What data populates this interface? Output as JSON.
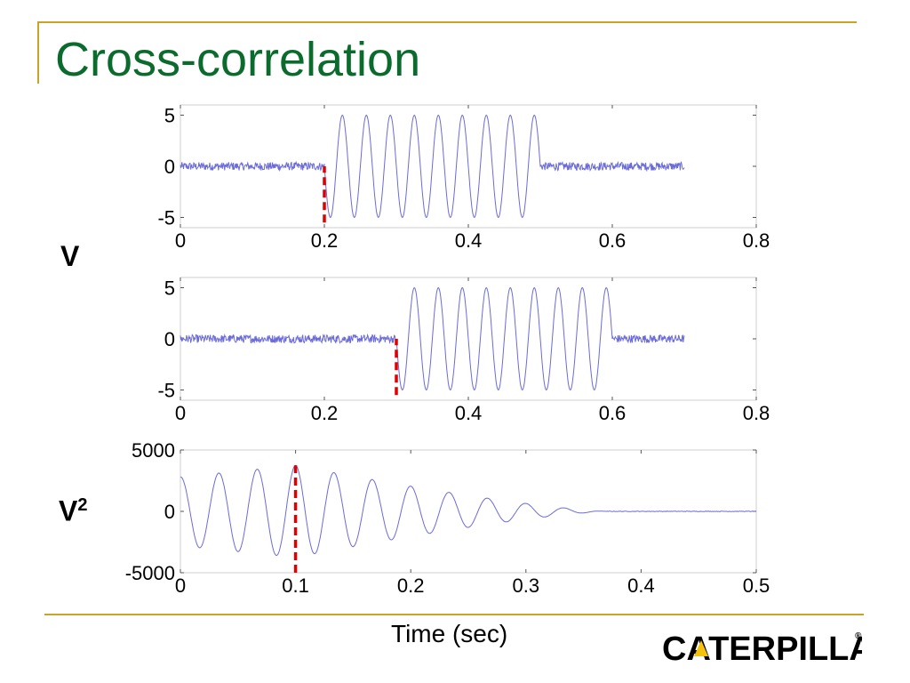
{
  "slide": {
    "title": "Cross-correlation",
    "label_v": "V",
    "label_v2_base": "V",
    "label_v2_sup": "2",
    "logo_text": "CATERPILLAR",
    "logo_mark": "®"
  },
  "colors": {
    "title": "#0b6b2d",
    "rule": "#c9a227",
    "signal": "#6b6bd9",
    "marker": "#e00000"
  },
  "chart_data": [
    {
      "type": "line",
      "title": "",
      "xlabel": "",
      "ylabel": "",
      "xlim": [
        0,
        0.8
      ],
      "ylim": [
        -6,
        6
      ],
      "xticks": [
        0,
        0.2,
        0.4,
        0.6,
        0.8
      ],
      "yticks": [
        -5,
        0,
        5
      ],
      "xtick_labels": [
        "0",
        "0.2",
        "0.4",
        "0.6",
        "0.8"
      ],
      "ytick_labels": [
        "-5",
        "0",
        "5"
      ],
      "series": [
        {
          "segments": [
            {
              "kind": "noise",
              "x": [
                0,
                0.2
              ],
              "amplitude": 0.4
            },
            {
              "kind": "sine",
              "x": [
                0.2,
                0.5
              ],
              "amplitude": 5,
              "frequency_hz": 30
            },
            {
              "kind": "noise",
              "x": [
                0.5,
                0.7
              ],
              "amplitude": 0.4
            }
          ]
        }
      ],
      "marker": {
        "x": 0.2,
        "y": [
          -5.5,
          0
        ],
        "style": "dashed",
        "color": "#e00000"
      },
      "grid": false
    },
    {
      "type": "line",
      "title": "",
      "xlabel": "",
      "ylabel": "",
      "xlim": [
        0,
        0.8
      ],
      "ylim": [
        -6,
        6
      ],
      "xticks": [
        0,
        0.2,
        0.4,
        0.6,
        0.8
      ],
      "yticks": [
        -5,
        0,
        5
      ],
      "xtick_labels": [
        "0",
        "0.2",
        "0.4",
        "0.6",
        "0.8"
      ],
      "ytick_labels": [
        "-5",
        "0",
        "5"
      ],
      "series": [
        {
          "segments": [
            {
              "kind": "noise",
              "x": [
                0,
                0.3
              ],
              "amplitude": 0.4
            },
            {
              "kind": "sine",
              "x": [
                0.3,
                0.6
              ],
              "amplitude": 5,
              "frequency_hz": 30
            },
            {
              "kind": "noise",
              "x": [
                0.6,
                0.7
              ],
              "amplitude": 0.4
            }
          ]
        }
      ],
      "marker": {
        "x": 0.3,
        "y": [
          -5.5,
          0
        ],
        "style": "dashed",
        "color": "#e00000"
      },
      "grid": false
    },
    {
      "type": "line",
      "title": "",
      "xlabel": "Time (sec)",
      "ylabel": "",
      "xlim": [
        0,
        0.5
      ],
      "ylim": [
        -5000,
        5000
      ],
      "xticks": [
        0,
        0.1,
        0.2,
        0.3,
        0.4,
        0.5
      ],
      "yticks": [
        -5000,
        0,
        5000
      ],
      "xtick_labels": [
        "0",
        "0.1",
        "0.2",
        "0.3",
        "0.4",
        "0.5"
      ],
      "ytick_labels": [
        "-5000",
        "0",
        "5000"
      ],
      "series": [
        {
          "segments": [
            {
              "kind": "cross_correlation",
              "x": [
                0,
                0.5
              ],
              "peak": 3750,
              "peak_x": 0.1,
              "frequency_hz": 30,
              "decay_end_x": 0.37
            }
          ]
        }
      ],
      "marker": {
        "x": 0.1,
        "y": [
          -5000,
          3750
        ],
        "style": "dashed",
        "color": "#e00000"
      },
      "grid": false
    }
  ]
}
